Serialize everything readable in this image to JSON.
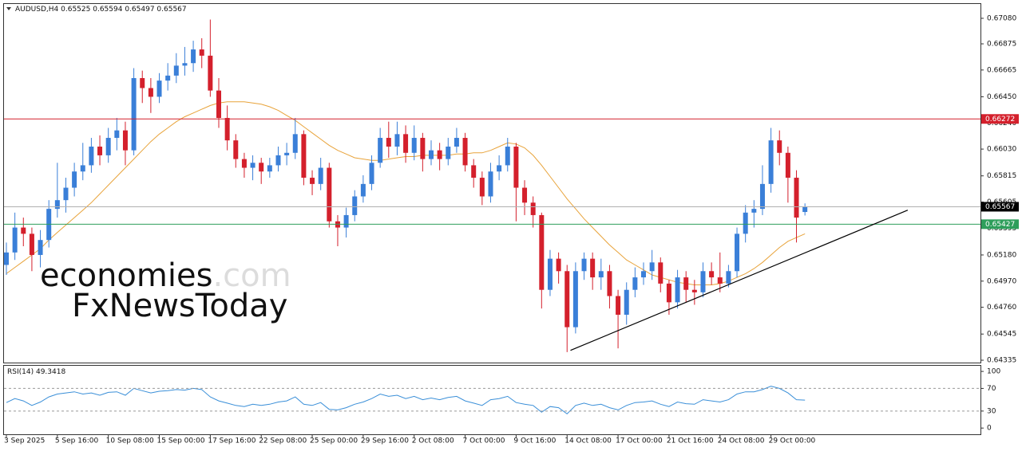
{
  "chart_data": {
    "type": "candlestick",
    "symbol": "AUDUSD,H4",
    "categories": [
      "3 Sep 2025",
      null,
      null,
      null,
      null,
      null,
      "5 Sep 16:00",
      null,
      null,
      null,
      null,
      null,
      "10 Sep 08:00",
      null,
      null,
      null,
      null,
      null,
      "15 Sep 00:00",
      null,
      null,
      null,
      null,
      null,
      "17 Sep 16:00",
      null,
      null,
      null,
      null,
      null,
      "22 Sep 08:00",
      null,
      null,
      null,
      null,
      null,
      "25 Sep 00:00",
      null,
      null,
      null,
      null,
      null,
      "29 Sep 16:00",
      null,
      null,
      null,
      null,
      null,
      "2 Oct 08:00",
      null,
      null,
      null,
      null,
      null,
      "7 Oct 00:00",
      null,
      null,
      null,
      null,
      null,
      "9 Oct 16:00",
      null,
      null,
      null,
      null,
      null,
      "14 Oct 08:00",
      null,
      null,
      null,
      null,
      null,
      "17 Oct 00:00",
      null,
      null,
      null,
      null,
      null,
      "21 Oct 16:00",
      null,
      null,
      null,
      null,
      null,
      "24 Oct 08:00",
      null,
      null,
      null,
      null,
      null,
      "29 Oct 00:00",
      null,
      null,
      null,
      null
    ],
    "open": [
      0.651,
      0.652,
      0.654,
      0.6535,
      0.6518,
      0.653,
      0.6555,
      0.6562,
      0.6572,
      0.6585,
      0.659,
      0.6605,
      0.6598,
      0.6612,
      0.6618,
      0.6602,
      0.666,
      0.6652,
      0.6645,
      0.6658,
      0.6662,
      0.667,
      0.6672,
      0.6683,
      0.6678,
      0.665,
      0.6628,
      0.661,
      0.6595,
      0.6588,
      0.6592,
      0.6585,
      0.659,
      0.6598,
      0.66,
      0.6615,
      0.658,
      0.6575,
      0.6588,
      0.6545,
      0.654,
      0.655,
      0.6565,
      0.6575,
      0.6592,
      0.6612,
      0.6605,
      0.6615,
      0.66,
      0.6612,
      0.6595,
      0.6602,
      0.6595,
      0.6605,
      0.6612,
      0.659,
      0.658,
      0.6565,
      0.6585,
      0.659,
      0.6605,
      0.6572,
      0.656,
      0.655,
      0.649,
      0.6515,
      0.6505,
      0.646,
      0.6505,
      0.6515,
      0.65,
      0.6505,
      0.6485,
      0.647,
      0.649,
      0.65,
      0.6505,
      0.6512,
      0.6495,
      0.648,
      0.65,
      0.649,
      0.6488,
      0.6505,
      0.65,
      0.6495,
      0.6505,
      0.6535,
      0.6552,
      0.6555,
      0.6575,
      0.661,
      0.66,
      0.658,
      0.65525
    ],
    "high": [
      0.6528,
      0.6552,
      0.6548,
      0.654,
      0.6538,
      0.6562,
      0.6592,
      0.658,
      0.6592,
      0.6608,
      0.6612,
      0.6614,
      0.662,
      0.6628,
      0.6625,
      0.6668,
      0.6666,
      0.666,
      0.6664,
      0.6672,
      0.668,
      0.6685,
      0.669,
      0.6692,
      0.6707,
      0.666,
      0.6638,
      0.6615,
      0.66,
      0.6598,
      0.6596,
      0.6596,
      0.6605,
      0.6608,
      0.6628,
      0.6618,
      0.6586,
      0.6596,
      0.6592,
      0.655,
      0.6556,
      0.657,
      0.6582,
      0.6598,
      0.662,
      0.6625,
      0.6625,
      0.6622,
      0.6622,
      0.6616,
      0.661,
      0.6608,
      0.6612,
      0.662,
      0.6616,
      0.6595,
      0.6585,
      0.6592,
      0.6598,
      0.6612,
      0.6608,
      0.6578,
      0.6565,
      0.6552,
      0.6522,
      0.652,
      0.651,
      0.6512,
      0.652,
      0.652,
      0.6515,
      0.651,
      0.649,
      0.6496,
      0.6508,
      0.6512,
      0.6522,
      0.6516,
      0.6498,
      0.6506,
      0.6505,
      0.6498,
      0.6512,
      0.6512,
      0.652,
      0.651,
      0.654,
      0.6558,
      0.6562,
      0.659,
      0.662,
      0.6618,
      0.6605,
      0.6586,
      0.65594
    ],
    "low": [
      0.6502,
      0.6514,
      0.6525,
      0.6505,
      0.6508,
      0.6524,
      0.6548,
      0.6552,
      0.6565,
      0.6578,
      0.6584,
      0.659,
      0.6592,
      0.6602,
      0.659,
      0.6598,
      0.664,
      0.6632,
      0.664,
      0.665,
      0.6656,
      0.6662,
      0.6665,
      0.6668,
      0.6645,
      0.662,
      0.6602,
      0.6588,
      0.658,
      0.6578,
      0.6575,
      0.658,
      0.6585,
      0.659,
      0.6595,
      0.6574,
      0.6566,
      0.657,
      0.654,
      0.6525,
      0.6532,
      0.6545,
      0.656,
      0.657,
      0.6588,
      0.6596,
      0.6598,
      0.6592,
      0.6594,
      0.6585,
      0.659,
      0.6586,
      0.659,
      0.66,
      0.6585,
      0.6572,
      0.6558,
      0.656,
      0.6578,
      0.6585,
      0.6545,
      0.655,
      0.654,
      0.6475,
      0.6485,
      0.6495,
      0.644,
      0.6455,
      0.6498,
      0.649,
      0.649,
      0.6475,
      0.6443,
      0.6462,
      0.6484,
      0.6494,
      0.6498,
      0.6488,
      0.647,
      0.6475,
      0.648,
      0.6478,
      0.6484,
      0.6494,
      0.6488,
      0.6492,
      0.65,
      0.6528,
      0.654,
      0.655,
      0.6568,
      0.659,
      0.656,
      0.6528,
      0.65497
    ],
    "close": [
      0.652,
      0.654,
      0.6535,
      0.6518,
      0.653,
      0.6555,
      0.6562,
      0.6572,
      0.6585,
      0.659,
      0.6605,
      0.6598,
      0.6612,
      0.6618,
      0.6602,
      0.666,
      0.6652,
      0.6645,
      0.6658,
      0.6662,
      0.667,
      0.6672,
      0.6683,
      0.6678,
      0.665,
      0.6628,
      0.661,
      0.6595,
      0.6588,
      0.6592,
      0.6585,
      0.659,
      0.6598,
      0.66,
      0.6615,
      0.658,
      0.6575,
      0.6588,
      0.6545,
      0.654,
      0.655,
      0.6565,
      0.6575,
      0.6592,
      0.6612,
      0.6605,
      0.6615,
      0.66,
      0.6612,
      0.6595,
      0.6602,
      0.6595,
      0.6605,
      0.6612,
      0.659,
      0.658,
      0.6565,
      0.6585,
      0.659,
      0.6605,
      0.6572,
      0.656,
      0.655,
      0.649,
      0.6515,
      0.6505,
      0.646,
      0.6505,
      0.6515,
      0.65,
      0.6505,
      0.6485,
      0.647,
      0.649,
      0.65,
      0.6505,
      0.6512,
      0.6495,
      0.648,
      0.65,
      0.649,
      0.6488,
      0.6505,
      0.65,
      0.6495,
      0.6505,
      0.6535,
      0.6552,
      0.6555,
      0.6575,
      0.661,
      0.66,
      0.658,
      0.6548,
      0.65567
    ],
    "colors": {
      "up": "#3a7fd8",
      "down": "#d4202c"
    },
    "ylim": [
      0.64316,
      0.67195
    ],
    "yticks": [
      {
        "value": 0.6708,
        "label": "0.67080"
      },
      {
        "value": 0.66875,
        "label": "0.66875"
      },
      {
        "value": 0.66665,
        "label": "0.66665"
      },
      {
        "value": 0.6645,
        "label": "0.66450"
      },
      {
        "value": 0.6624,
        "label": "0.66240"
      },
      {
        "value": 0.6603,
        "label": "0.66030"
      },
      {
        "value": 0.65815,
        "label": "0.65815"
      },
      {
        "value": 0.65605,
        "label": "0.65605"
      },
      {
        "value": 0.65395,
        "label": "0.65395"
      },
      {
        "value": 0.6518,
        "label": "0.65180"
      },
      {
        "value": 0.6497,
        "label": "0.64970"
      },
      {
        "value": 0.6476,
        "label": "0.64760"
      },
      {
        "value": 0.64545,
        "label": "0.64545"
      },
      {
        "value": 0.64335,
        "label": "0.64335"
      }
    ],
    "ma": {
      "color": "#e8a33a",
      "values": [
        0.6503,
        0.6508,
        0.6513,
        0.6518,
        0.6523,
        0.653,
        0.6536,
        0.6542,
        0.6548,
        0.6554,
        0.656,
        0.6567,
        0.6574,
        0.6581,
        0.6588,
        0.6595,
        0.6602,
        0.6609,
        0.6615,
        0.662,
        0.6625,
        0.6629,
        0.6632,
        0.6635,
        0.6638,
        0.664,
        0.6641,
        0.6641,
        0.6641,
        0.664,
        0.6639,
        0.6637,
        0.6634,
        0.663,
        0.6626,
        0.6621,
        0.6616,
        0.6611,
        0.6606,
        0.6602,
        0.6599,
        0.6596,
        0.6595,
        0.6594,
        0.6594,
        0.6595,
        0.6596,
        0.6597,
        0.6597,
        0.6598,
        0.6598,
        0.6598,
        0.6598,
        0.6599,
        0.6599,
        0.66,
        0.66,
        0.6602,
        0.6605,
        0.6608,
        0.6607,
        0.6604,
        0.6598,
        0.659,
        0.6581,
        0.6572,
        0.6563,
        0.6555,
        0.6547,
        0.654,
        0.6533,
        0.6526,
        0.652,
        0.6514,
        0.651,
        0.6506,
        0.6502,
        0.65,
        0.6498,
        0.6496,
        0.6495,
        0.6494,
        0.6494,
        0.6494,
        0.6495,
        0.6497,
        0.65,
        0.6503,
        0.6507,
        0.6512,
        0.6518,
        0.6524,
        0.6529,
        0.6532,
        0.6535
      ]
    },
    "price_line_color": "#b0b0b0",
    "hlines": [
      {
        "value": 0.66272,
        "color": "#d4202c"
      },
      {
        "value": 0.65427,
        "color": "#2e9e5b"
      }
    ],
    "trendline": {
      "color": "#000000",
      "points": [
        [
          66.4,
          0.64414
        ],
        [
          106.1,
          0.6554
        ]
      ]
    },
    "watermark": {
      "brand": "economies",
      "suffix": ".com",
      "site": "FxNewsToday"
    },
    "rsi": {
      "name": "RSI(14)",
      "color": "#3a8fd8",
      "values": [
        45,
        52,
        48,
        40,
        46,
        55,
        60,
        62,
        64,
        60,
        62,
        58,
        63,
        64,
        58,
        70,
        66,
        62,
        65,
        66,
        68,
        67,
        70,
        68,
        55,
        48,
        44,
        40,
        38,
        42,
        40,
        42,
        46,
        48,
        55,
        42,
        40,
        45,
        33,
        32,
        36,
        42,
        46,
        52,
        60,
        56,
        58,
        52,
        56,
        50,
        53,
        50,
        54,
        56,
        48,
        44,
        40,
        50,
        52,
        56,
        45,
        42,
        40,
        28,
        38,
        36,
        25,
        40,
        44,
        40,
        42,
        36,
        32,
        40,
        45,
        46,
        48,
        42,
        38,
        46,
        43,
        42,
        50,
        48,
        46,
        50,
        60,
        64,
        64,
        68,
        74,
        70,
        62,
        50,
        49.3418
      ],
      "ylim": [
        -11,
        110
      ],
      "yticks": [
        100,
        70,
        30,
        0
      ],
      "levels": [
        70,
        30
      ]
    }
  }
}
